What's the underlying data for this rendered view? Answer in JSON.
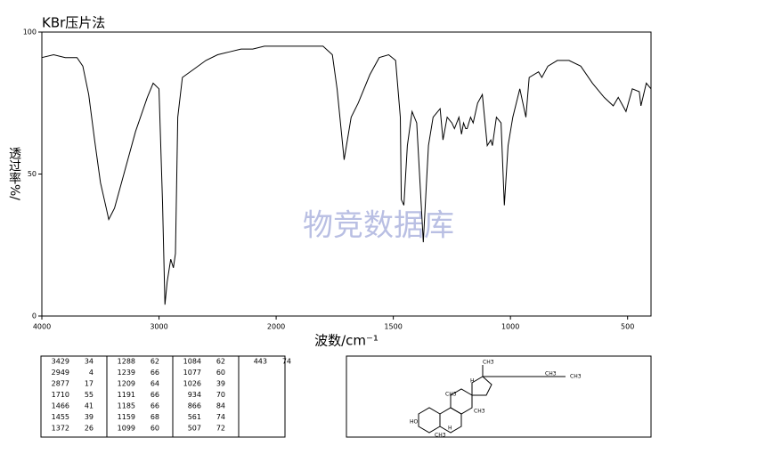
{
  "chart_data": {
    "type": "line",
    "title": "KBr压片法",
    "x_label": "波数/cm⁻¹",
    "y_label": "透过率%/",
    "watermark": "物竞数据库",
    "xlim": [
      4000,
      400
    ],
    "xticks": [
      4000,
      3000,
      2000,
      1500,
      1000,
      500
    ],
    "ylim": [
      0,
      100
    ],
    "yticks": [
      0,
      50,
      100
    ],
    "color": "#000000",
    "x": [
      4000,
      3900,
      3800,
      3700,
      3650,
      3600,
      3550,
      3500,
      3450,
      3429,
      3380,
      3300,
      3200,
      3100,
      3050,
      3000,
      2970,
      2949,
      2930,
      2900,
      2877,
      2860,
      2840,
      2800,
      2700,
      2600,
      2500,
      2400,
      2300,
      2200,
      2100,
      2000,
      1900,
      1800,
      1760,
      1740,
      1710,
      1680,
      1650,
      1600,
      1560,
      1520,
      1490,
      1470,
      1466,
      1455,
      1440,
      1420,
      1400,
      1372,
      1350,
      1330,
      1300,
      1288,
      1270,
      1250,
      1239,
      1220,
      1209,
      1200,
      1191,
      1185,
      1170,
      1159,
      1140,
      1120,
      1099,
      1084,
      1077,
      1060,
      1040,
      1026,
      1010,
      990,
      960,
      934,
      920,
      880,
      866,
      840,
      800,
      750,
      700,
      650,
      600,
      561,
      540,
      507,
      480,
      450,
      443,
      420,
      400
    ],
    "values": [
      91,
      92,
      91,
      91,
      88,
      78,
      62,
      47,
      38,
      34,
      38,
      50,
      65,
      77,
      82,
      80,
      40,
      4,
      12,
      20,
      17,
      22,
      70,
      84,
      87,
      90,
      92,
      93,
      94,
      94,
      95,
      95,
      95,
      95,
      92,
      80,
      55,
      70,
      75,
      85,
      91,
      92,
      90,
      70,
      41,
      39,
      60,
      72,
      68,
      26,
      60,
      70,
      73,
      62,
      70,
      68,
      66,
      70,
      64,
      68,
      66,
      66,
      70,
      68,
      75,
      78,
      60,
      62,
      60,
      70,
      68,
      39,
      60,
      70,
      80,
      70,
      84,
      86,
      84,
      88,
      90,
      90,
      88,
      82,
      77,
      74,
      77,
      72,
      80,
      79,
      74,
      82,
      80
    ]
  },
  "peaks": [
    [
      3429,
      34
    ],
    [
      2949,
      4
    ],
    [
      2877,
      17
    ],
    [
      1710,
      55
    ],
    [
      1466,
      41
    ],
    [
      1455,
      39
    ],
    [
      1372,
      26
    ],
    [
      1288,
      62
    ],
    [
      1239,
      66
    ],
    [
      1209,
      64
    ],
    [
      1191,
      66
    ],
    [
      1185,
      66
    ],
    [
      1159,
      68
    ],
    [
      1099,
      60
    ],
    [
      1084,
      62
    ],
    [
      1077,
      60
    ],
    [
      1026,
      39
    ],
    [
      934,
      70
    ],
    [
      866,
      84
    ],
    [
      561,
      74
    ],
    [
      507,
      72
    ],
    [
      443,
      74
    ]
  ],
  "structure": {
    "labels": [
      "CH3",
      "CH3",
      "CH3",
      "CH3",
      "CH3",
      "CH3",
      "HO",
      "H",
      "H"
    ]
  }
}
